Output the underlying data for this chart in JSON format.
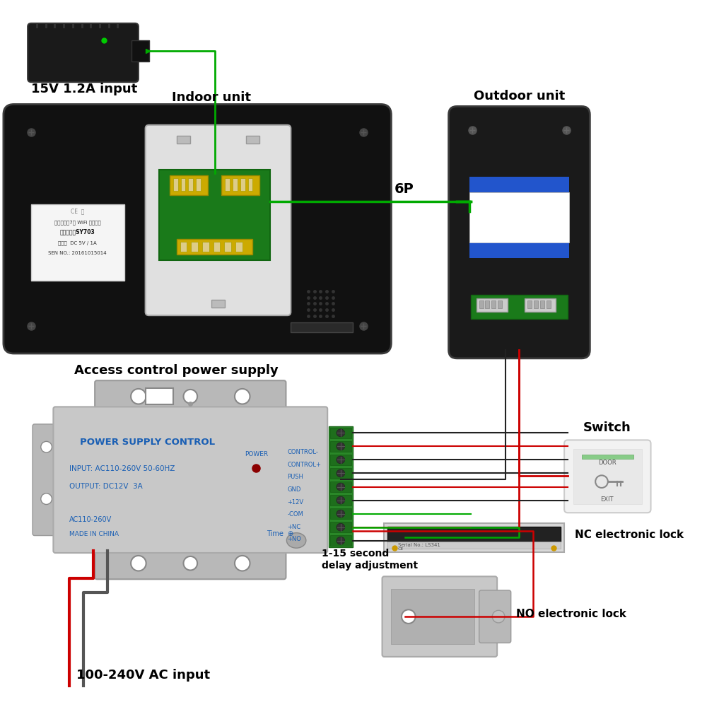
{
  "bg_color": "#ffffff",
  "labels": {
    "power_adapter": "15V 1.2A input",
    "indoor_unit": "Indoor unit",
    "outdoor_unit": "Outdoor unit",
    "access_control": "Access control power supply",
    "cable_label": "6P",
    "delay_label": "1-15 second\ndelay adjustment",
    "ac_input": "100-240V AC input",
    "switch_label": "Switch",
    "nc_lock": "NC electronic lock",
    "no_lock": "NO electronic lock"
  },
  "power_supply_text": {
    "title": "POWER SUPPLY CONTROL",
    "line1": "INPUT: AC110-260V 50-60HZ",
    "line2": "OUTPUT: DC12V  3A",
    "line3": "AC110-260V",
    "line4": "MADE IN CHINA",
    "power_label": "POWER",
    "terminals": [
      "CONTROL-",
      "CONTROL+",
      "PUSH",
      "GND",
      "+12V",
      "-COM",
      "+NC",
      "+NO"
    ]
  },
  "colors": {
    "green_wire": "#00aa00",
    "red_wire": "#cc0000",
    "black_wire": "#222222",
    "label_text": "#000000",
    "power_supply_bg": "#c8c8c8",
    "power_supply_title": "#1a5fb4",
    "power_supply_text": "#1a5fb4",
    "blue_stripe": "#2255cc",
    "outdoor_body": "#1a1a1a",
    "indoor_body": "#111111",
    "mount_plate": "#e0e0e0",
    "pcb_green": "#1a7a1a",
    "connector_yellow": "#ccaa00"
  },
  "label_fontsize": 12,
  "title_fontsize": 13
}
